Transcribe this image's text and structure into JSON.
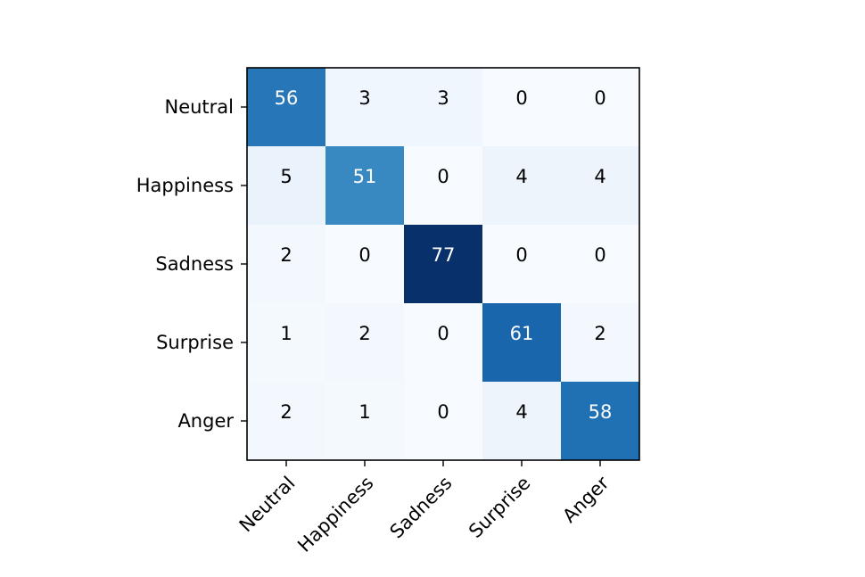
{
  "chart_data": {
    "type": "heatmap",
    "title": "",
    "xlabel": "",
    "ylabel": "",
    "row_labels": [
      "Neutral",
      "Happiness",
      "Sadness",
      "Surprise",
      "Anger"
    ],
    "col_labels": [
      "Neutral",
      "Happiness",
      "Sadness",
      "Surprise",
      "Anger"
    ],
    "values": [
      [
        56,
        3,
        3,
        0,
        0
      ],
      [
        5,
        51,
        0,
        4,
        4
      ],
      [
        2,
        0,
        77,
        0,
        0
      ],
      [
        1,
        2,
        0,
        61,
        2
      ],
      [
        2,
        1,
        0,
        4,
        58
      ]
    ],
    "value_range": [
      0,
      77
    ],
    "colormap": "Blues",
    "colors": {
      "low": "#f7fbff",
      "high": "#08306b",
      "text_dark": "#000000",
      "text_light": "#ffffff"
    },
    "grid": false,
    "legend": "none"
  }
}
